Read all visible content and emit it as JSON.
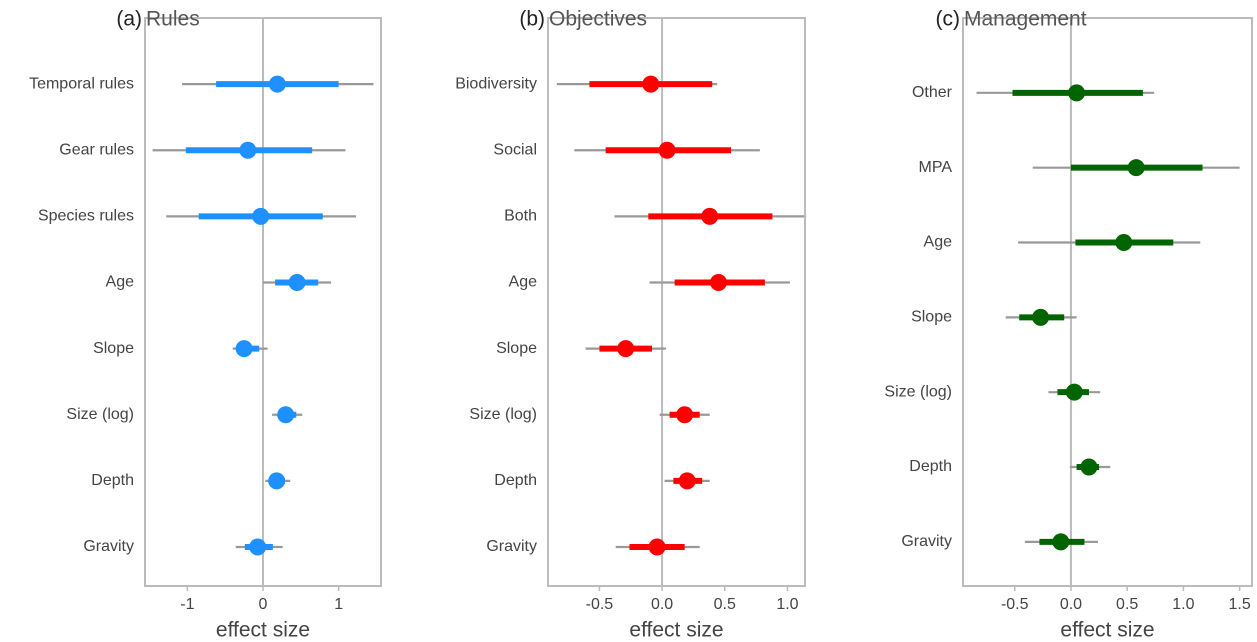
{
  "chart_data": [
    {
      "type": "forest",
      "label": "(a)",
      "title": "Rules",
      "xlabel": "effect size",
      "color": "#1e90ff",
      "categories": [
        "Temporal rules",
        "Gear rules",
        "Species rules",
        "Age",
        "Slope",
        "Size (log)",
        "Depth",
        "Gravity"
      ],
      "values": [
        0.19,
        -0.2,
        -0.03,
        0.45,
        -0.25,
        0.3,
        0.18,
        -0.07
      ],
      "inner_low": [
        -0.62,
        -1.02,
        -0.85,
        0.16,
        -0.3,
        0.2,
        0.09,
        -0.24
      ],
      "inner_high": [
        1.0,
        0.65,
        0.79,
        0.73,
        -0.05,
        0.44,
        0.29,
        0.13
      ],
      "outer_low": [
        -1.07,
        -1.46,
        -1.28,
        0.0,
        -0.4,
        0.12,
        0.03,
        -0.36
      ],
      "outer_high": [
        1.46,
        1.09,
        1.23,
        0.9,
        0.06,
        0.52,
        0.36,
        0.26
      ],
      "xlim": [
        -1.56,
        1.56
      ],
      "xticks": [
        -1,
        0,
        1
      ]
    },
    {
      "type": "forest",
      "label": "(b)",
      "title": "Objectives",
      "xlabel": "effect size",
      "color": "#ff0000",
      "categories": [
        "Biodiversity",
        "Social",
        "Both",
        "Age",
        "Slope",
        "Size (log)",
        "Depth",
        "Gravity"
      ],
      "values": [
        -0.09,
        0.04,
        0.38,
        0.45,
        -0.29,
        0.18,
        0.2,
        -0.04
      ],
      "inner_low": [
        -0.58,
        -0.45,
        -0.11,
        0.1,
        -0.5,
        0.06,
        0.09,
        -0.26
      ],
      "inner_high": [
        0.4,
        0.55,
        0.88,
        0.82,
        -0.08,
        0.3,
        0.32,
        0.18
      ],
      "outer_low": [
        -0.84,
        -0.7,
        -0.38,
        -0.1,
        -0.61,
        -0.02,
        0.02,
        -0.37
      ],
      "outer_high": [
        0.44,
        0.78,
        1.15,
        1.02,
        0.03,
        0.38,
        0.38,
        0.3
      ],
      "xlim": [
        -0.91,
        1.14
      ],
      "xticks": [
        -0.5,
        {
          "value": 0,
          "label": "0.0"
        },
        0.5,
        {
          "value": 1,
          "label": "1.0"
        }
      ]
    },
    {
      "type": "forest",
      "label": "(c)",
      "title": "Management",
      "xlabel": "effect size",
      "color": "#006400",
      "categories": [
        "Other",
        "MPA",
        "Age",
        "Slope",
        "Size (log)",
        "Depth",
        "Gravity"
      ],
      "values": [
        0.05,
        0.58,
        0.47,
        -0.27,
        0.03,
        0.16,
        -0.09
      ],
      "inner_low": [
        -0.52,
        0.0,
        0.04,
        -0.46,
        -0.12,
        0.05,
        -0.28
      ],
      "inner_high": [
        0.64,
        1.17,
        0.91,
        -0.06,
        0.16,
        0.25,
        0.12
      ],
      "outer_low": [
        -0.84,
        -0.34,
        -0.47,
        -0.58,
        -0.2,
        -0.01,
        -0.41
      ],
      "outer_high": [
        0.74,
        1.5,
        1.15,
        0.05,
        0.26,
        0.35,
        0.24
      ],
      "xlim": [
        -0.96,
        1.61
      ],
      "xticks": [
        -0.5,
        {
          "value": 0,
          "label": "0.0"
        },
        0.5,
        {
          "value": 1,
          "label": "1.0"
        },
        1.5
      ]
    }
  ]
}
